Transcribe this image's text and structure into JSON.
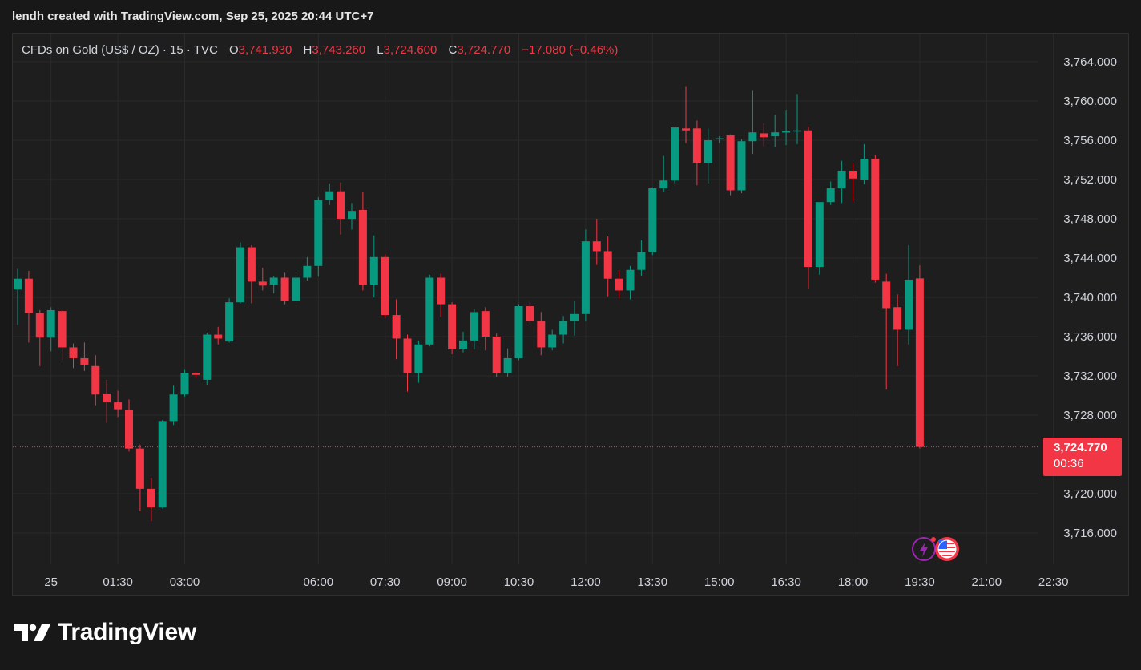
{
  "header": {
    "attribution": "lendh created with TradingView.com, Sep 25, 2025 20:44 UTC+7"
  },
  "legend": {
    "symbol": "CFDs on Gold (US$ / OZ) · 15 · TVC",
    "open_label": "O",
    "open": "3,741.930",
    "high_label": "H",
    "high": "3,743.260",
    "low_label": "L",
    "low": "3,724.600",
    "close_label": "C",
    "close": "3,724.770",
    "change": "−17.080 (−0.46%)"
  },
  "price_tag": {
    "price": "3,724.770",
    "countdown": "00:36"
  },
  "brand": {
    "name": "TradingView",
    "logo_icon": "tradingview-logo-icon"
  },
  "events": {
    "icons": [
      "lightning-event-icon",
      "us-flag-event-icon"
    ]
  },
  "colors": {
    "up": "#089981",
    "down": "#f23645",
    "background": "#1e1e1e",
    "grid": "#2a2a2a"
  },
  "chart_data": {
    "type": "candlestick",
    "interval": "15",
    "ylim": [
      3713,
      3766
    ],
    "yticks": [
      3716,
      3720,
      3728,
      3732,
      3736,
      3740,
      3744,
      3748,
      3752,
      3756,
      3760,
      3764
    ],
    "ytick_labels": [
      "3,716.000",
      "3,720.000",
      "3,728.000",
      "3,732.000",
      "3,736.000",
      "3,740.000",
      "3,744.000",
      "3,748.000",
      "3,752.000",
      "3,756.000",
      "3,760.000",
      "3,764.000"
    ],
    "xtick_labels": [
      "25",
      "01:30",
      "03:00",
      "06:00",
      "07:30",
      "09:00",
      "10:30",
      "12:00",
      "13:30",
      "15:00",
      "16:30",
      "18:00",
      "19:30",
      "21:00",
      "22:30"
    ],
    "xtick_times": [
      "00:00",
      "01:30",
      "03:00",
      "06:00",
      "07:30",
      "09:00",
      "10:30",
      "12:00",
      "13:30",
      "15:00",
      "16:30",
      "18:00",
      "19:30",
      "21:00",
      "22:30"
    ],
    "last_price": 3724.77,
    "candles": [
      {
        "t": "00:00",
        "o": 3740.8,
        "h": 3742.9,
        "l": 3737.2,
        "c": 3741.9
      },
      {
        "t": "00:15",
        "o": 3741.9,
        "h": 3742.7,
        "l": 3735.4,
        "c": 3738.4
      },
      {
        "t": "00:30",
        "o": 3738.4,
        "h": 3738.7,
        "l": 3733.0,
        "c": 3735.9
      },
      {
        "t": "00:45",
        "o": 3735.9,
        "h": 3739.0,
        "l": 3734.5,
        "c": 3738.7
      },
      {
        "t": "01:00",
        "o": 3738.6,
        "h": 3738.7,
        "l": 3733.6,
        "c": 3734.9
      },
      {
        "t": "01:15",
        "o": 3734.9,
        "h": 3735.3,
        "l": 3732.8,
        "c": 3733.8
      },
      {
        "t": "01:30",
        "o": 3733.8,
        "h": 3735.4,
        "l": 3732.5,
        "c": 3733.1
      },
      {
        "t": "01:45",
        "o": 3733.0,
        "h": 3734.1,
        "l": 3729.0,
        "c": 3730.1
      },
      {
        "t": "02:00",
        "o": 3730.2,
        "h": 3731.6,
        "l": 3727.2,
        "c": 3729.3
      },
      {
        "t": "02:15",
        "o": 3729.3,
        "h": 3730.5,
        "l": 3727.8,
        "c": 3728.6
      },
      {
        "t": "02:30",
        "o": 3728.5,
        "h": 3729.6,
        "l": 3724.3,
        "c": 3724.6
      },
      {
        "t": "02:45",
        "o": 3724.6,
        "h": 3725.0,
        "l": 3718.2,
        "c": 3720.5
      },
      {
        "t": "03:00",
        "o": 3720.5,
        "h": 3721.6,
        "l": 3717.2,
        "c": 3718.6
      },
      {
        "t": "03:15",
        "o": 3718.6,
        "h": 3727.5,
        "l": 3718.5,
        "c": 3727.4
      },
      {
        "t": "03:30",
        "o": 3727.4,
        "h": 3731.0,
        "l": 3727.0,
        "c": 3730.1
      },
      {
        "t": "03:45",
        "o": 3730.1,
        "h": 3732.6,
        "l": 3729.9,
        "c": 3732.3
      },
      {
        "t": "04:00",
        "o": 3732.3,
        "h": 3732.4,
        "l": 3731.8,
        "c": 3732.1
      },
      {
        "t": "04:15",
        "o": 3731.6,
        "h": 3736.4,
        "l": 3731.1,
        "c": 3736.2
      },
      {
        "t": "04:30",
        "o": 3736.2,
        "h": 3737.0,
        "l": 3735.2,
        "c": 3735.8
      },
      {
        "t": "04:45",
        "o": 3735.5,
        "h": 3739.9,
        "l": 3735.4,
        "c": 3739.5
      },
      {
        "t": "05:00",
        "o": 3739.5,
        "h": 3745.6,
        "l": 3739.4,
        "c": 3745.1
      },
      {
        "t": "05:15",
        "o": 3745.1,
        "h": 3745.3,
        "l": 3739.4,
        "c": 3741.6
      },
      {
        "t": "05:30",
        "o": 3741.6,
        "h": 3743.0,
        "l": 3740.7,
        "c": 3741.2
      },
      {
        "t": "05:45",
        "o": 3741.3,
        "h": 3742.2,
        "l": 3740.4,
        "c": 3742.0
      },
      {
        "t": "06:00",
        "o": 3742.0,
        "h": 3742.5,
        "l": 3739.3,
        "c": 3739.6
      },
      {
        "t": "06:15",
        "o": 3739.6,
        "h": 3742.3,
        "l": 3739.4,
        "c": 3742.0
      },
      {
        "t": "06:30",
        "o": 3742.0,
        "h": 3744.1,
        "l": 3741.7,
        "c": 3743.2
      },
      {
        "t": "06:45",
        "o": 3743.2,
        "h": 3750.2,
        "l": 3742.1,
        "c": 3749.9
      },
      {
        "t": "07:00",
        "o": 3749.9,
        "h": 3751.6,
        "l": 3749.4,
        "c": 3750.8
      },
      {
        "t": "07:15",
        "o": 3750.8,
        "h": 3751.7,
        "l": 3746.4,
        "c": 3748.0
      },
      {
        "t": "07:30",
        "o": 3748.0,
        "h": 3749.6,
        "l": 3746.9,
        "c": 3748.8
      },
      {
        "t": "07:45",
        "o": 3748.9,
        "h": 3750.7,
        "l": 3740.7,
        "c": 3741.3
      },
      {
        "t": "08:00",
        "o": 3741.3,
        "h": 3746.3,
        "l": 3740.0,
        "c": 3744.1
      },
      {
        "t": "08:15",
        "o": 3744.1,
        "h": 3744.4,
        "l": 3737.9,
        "c": 3738.2
      },
      {
        "t": "08:30",
        "o": 3738.2,
        "h": 3739.8,
        "l": 3733.7,
        "c": 3735.8
      },
      {
        "t": "08:45",
        "o": 3735.8,
        "h": 3736.2,
        "l": 3730.4,
        "c": 3732.3
      },
      {
        "t": "09:00",
        "o": 3732.3,
        "h": 3735.6,
        "l": 3731.3,
        "c": 3735.2
      },
      {
        "t": "09:15",
        "o": 3735.2,
        "h": 3742.3,
        "l": 3735.0,
        "c": 3742.0
      },
      {
        "t": "09:30",
        "o": 3742.0,
        "h": 3742.4,
        "l": 3738.0,
        "c": 3739.3
      },
      {
        "t": "09:45",
        "o": 3739.3,
        "h": 3739.5,
        "l": 3734.2,
        "c": 3734.7
      },
      {
        "t": "10:00",
        "o": 3734.7,
        "h": 3736.5,
        "l": 3734.4,
        "c": 3735.6
      },
      {
        "t": "10:15",
        "o": 3735.6,
        "h": 3738.8,
        "l": 3734.7,
        "c": 3738.5
      },
      {
        "t": "10:30",
        "o": 3738.6,
        "h": 3739.0,
        "l": 3734.6,
        "c": 3736.0
      },
      {
        "t": "10:45",
        "o": 3736.0,
        "h": 3736.3,
        "l": 3731.9,
        "c": 3732.3
      },
      {
        "t": "11:00",
        "o": 3732.3,
        "h": 3734.8,
        "l": 3731.9,
        "c": 3733.8
      },
      {
        "t": "11:15",
        "o": 3733.8,
        "h": 3739.3,
        "l": 3733.6,
        "c": 3739.1
      },
      {
        "t": "11:30",
        "o": 3739.1,
        "h": 3739.6,
        "l": 3737.4,
        "c": 3737.6
      },
      {
        "t": "11:45",
        "o": 3737.6,
        "h": 3738.5,
        "l": 3734.1,
        "c": 3734.9
      },
      {
        "t": "12:00",
        "o": 3734.9,
        "h": 3736.7,
        "l": 3734.6,
        "c": 3736.2
      },
      {
        "t": "12:15",
        "o": 3736.2,
        "h": 3738.1,
        "l": 3735.3,
        "c": 3737.6
      },
      {
        "t": "12:30",
        "o": 3737.6,
        "h": 3739.6,
        "l": 3736.1,
        "c": 3738.3
      },
      {
        "t": "12:45",
        "o": 3738.3,
        "h": 3746.9,
        "l": 3737.6,
        "c": 3745.7
      },
      {
        "t": "13:00",
        "o": 3745.7,
        "h": 3748.0,
        "l": 3743.3,
        "c": 3744.7
      },
      {
        "t": "13:15",
        "o": 3744.7,
        "h": 3746.2,
        "l": 3740.1,
        "c": 3741.9
      },
      {
        "t": "13:30",
        "o": 3741.9,
        "h": 3742.8,
        "l": 3739.9,
        "c": 3740.7
      },
      {
        "t": "13:45",
        "o": 3740.7,
        "h": 3743.2,
        "l": 3739.8,
        "c": 3742.8
      },
      {
        "t": "14:00",
        "o": 3742.8,
        "h": 3745.8,
        "l": 3742.2,
        "c": 3744.6
      },
      {
        "t": "14:15",
        "o": 3744.6,
        "h": 3751.2,
        "l": 3744.3,
        "c": 3751.1
      },
      {
        "t": "14:30",
        "o": 3751.1,
        "h": 3754.4,
        "l": 3750.7,
        "c": 3751.9
      },
      {
        "t": "14:45",
        "o": 3751.9,
        "h": 3757.3,
        "l": 3751.6,
        "c": 3757.3
      },
      {
        "t": "15:00",
        "o": 3757.2,
        "h": 3761.5,
        "l": 3755.7,
        "c": 3757.0
      },
      {
        "t": "15:15",
        "o": 3757.2,
        "h": 3758.0,
        "l": 3751.4,
        "c": 3753.7
      },
      {
        "t": "15:30",
        "o": 3753.7,
        "h": 3757.2,
        "l": 3751.6,
        "c": 3756.0
      },
      {
        "t": "15:45",
        "o": 3756.1,
        "h": 3756.4,
        "l": 3755.7,
        "c": 3756.2
      },
      {
        "t": "16:00",
        "o": 3756.5,
        "h": 3756.6,
        "l": 3750.4,
        "c": 3750.9
      },
      {
        "t": "16:15",
        "o": 3750.9,
        "h": 3756.1,
        "l": 3750.6,
        "c": 3755.9
      },
      {
        "t": "16:30",
        "o": 3755.9,
        "h": 3761.1,
        "l": 3754.6,
        "c": 3756.8
      },
      {
        "t": "16:45",
        "o": 3756.7,
        "h": 3757.7,
        "l": 3755.4,
        "c": 3756.3
      },
      {
        "t": "17:00",
        "o": 3756.4,
        "h": 3758.6,
        "l": 3755.3,
        "c": 3756.8
      },
      {
        "t": "17:15",
        "o": 3756.9,
        "h": 3759.1,
        "l": 3755.5,
        "c": 3756.9
      },
      {
        "t": "17:30",
        "o": 3756.9,
        "h": 3760.7,
        "l": 3755.6,
        "c": 3757.0
      },
      {
        "t": "17:45",
        "o": 3757.0,
        "h": 3757.4,
        "l": 3740.9,
        "c": 3743.1
      },
      {
        "t": "18:00",
        "o": 3743.1,
        "h": 3749.6,
        "l": 3742.3,
        "c": 3749.7
      },
      {
        "t": "18:15",
        "o": 3749.7,
        "h": 3751.8,
        "l": 3749.4,
        "c": 3751.1
      },
      {
        "t": "18:30",
        "o": 3751.1,
        "h": 3753.9,
        "l": 3749.6,
        "c": 3752.9
      },
      {
        "t": "18:45",
        "o": 3752.9,
        "h": 3753.7,
        "l": 3749.8,
        "c": 3752.1
      },
      {
        "t": "19:00",
        "o": 3752.0,
        "h": 3755.6,
        "l": 3751.5,
        "c": 3754.1
      },
      {
        "t": "19:15",
        "o": 3754.1,
        "h": 3754.5,
        "l": 3741.5,
        "c": 3741.8
      },
      {
        "t": "19:30",
        "o": 3741.6,
        "h": 3742.4,
        "l": 3730.6,
        "c": 3738.9
      },
      {
        "t": "19:45",
        "o": 3739.0,
        "h": 3740.3,
        "l": 3733.0,
        "c": 3736.7
      },
      {
        "t": "20:00",
        "o": 3736.7,
        "h": 3745.3,
        "l": 3735.2,
        "c": 3741.8
      },
      {
        "t": "20:15",
        "o": 3741.93,
        "h": 3743.26,
        "l": 3724.6,
        "c": 3724.77
      }
    ]
  }
}
